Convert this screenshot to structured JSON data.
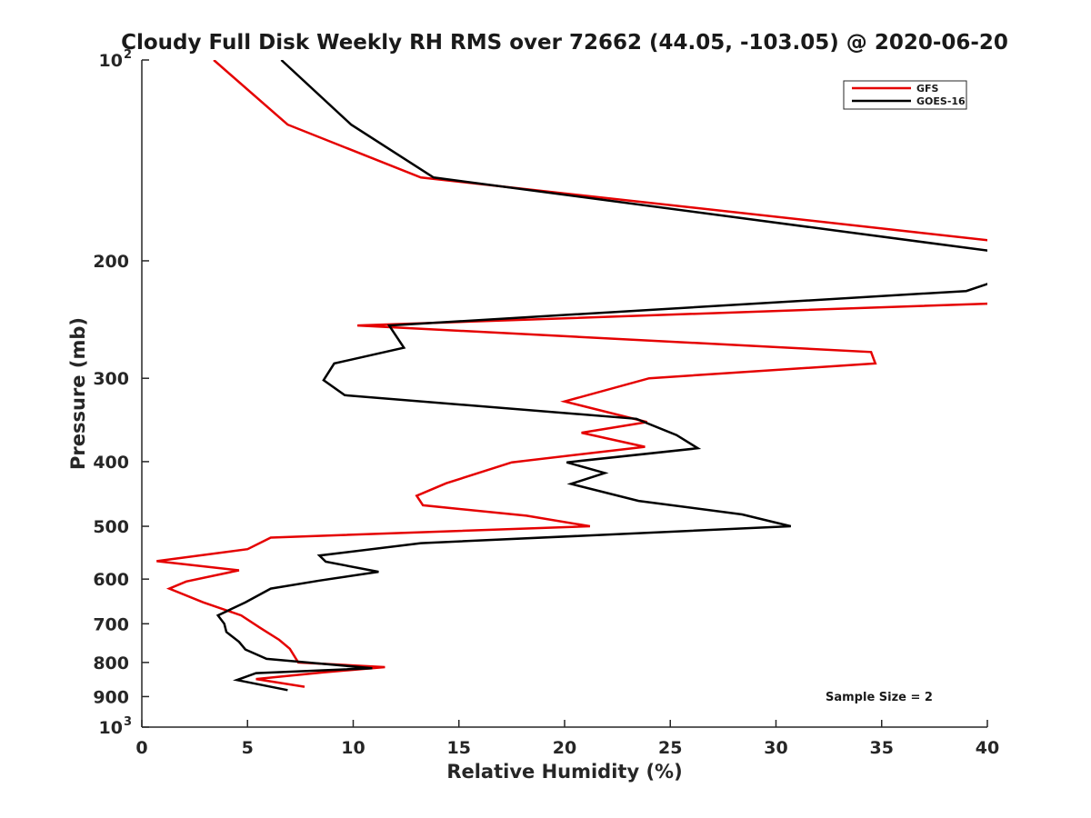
{
  "chart_data": {
    "type": "line",
    "title": "Cloudy Full Disk Weekly RH RMS over 72662 (44.05, -103.05) @ 2020-06-20",
    "xlabel": "Relative Humidity (%)",
    "ylabel": "Pressure (mb)",
    "xlim": [
      0,
      40
    ],
    "ylim": [
      100,
      1000
    ],
    "yscale": "log",
    "y_reversed": true,
    "grid": false,
    "legend_position": "top-right",
    "x_ticks": [
      0,
      5,
      10,
      15,
      20,
      25,
      30,
      35,
      40
    ],
    "y_ticks": [
      {
        "value": 100,
        "base": "10",
        "exp": "2"
      },
      {
        "value": 200,
        "label": "200"
      },
      {
        "value": 300,
        "label": "300"
      },
      {
        "value": 400,
        "label": "400"
      },
      {
        "value": 500,
        "label": "500"
      },
      {
        "value": 600,
        "label": "600"
      },
      {
        "value": 700,
        "label": "700"
      },
      {
        "value": 800,
        "label": "800"
      },
      {
        "value": 900,
        "label": "900"
      },
      {
        "value": 1000,
        "base": "10",
        "exp": "3"
      }
    ],
    "annotation": "Sample Size = 2",
    "series": [
      {
        "name": "GFS",
        "color": "#e50000",
        "points": [
          [
            3.4,
            100
          ],
          [
            6.9,
            125
          ],
          [
            13.2,
            150
          ],
          [
            40.5,
            187
          ],
          [
            41.5,
            231
          ],
          [
            10.2,
            250
          ],
          [
            34.5,
            274
          ],
          [
            34.7,
            285
          ],
          [
            24.0,
            300
          ],
          [
            20.0,
            325
          ],
          [
            23.9,
            349
          ],
          [
            20.8,
            362
          ],
          [
            23.8,
            380
          ],
          [
            17.5,
            401
          ],
          [
            14.4,
            431
          ],
          [
            13.0,
            450
          ],
          [
            13.3,
            465
          ],
          [
            18.2,
            482
          ],
          [
            21.2,
            500
          ],
          [
            6.1,
            520
          ],
          [
            5.0,
            541
          ],
          [
            0.7,
            564
          ],
          [
            4.6,
            582
          ],
          [
            2.1,
            605
          ],
          [
            1.3,
            620
          ],
          [
            2.9,
            650
          ],
          [
            4.7,
            680
          ],
          [
            5.6,
            710
          ],
          [
            6.5,
            740
          ],
          [
            7.0,
            763
          ],
          [
            7.4,
            800
          ],
          [
            11.5,
            813
          ],
          [
            8.6,
            828
          ],
          [
            5.4,
            847
          ],
          [
            7.7,
            870
          ]
        ]
      },
      {
        "name": "GOES-16",
        "color": "#000000",
        "points": [
          [
            6.6,
            100
          ],
          [
            9.9,
            125
          ],
          [
            13.8,
            150
          ],
          [
            40.5,
            194
          ],
          [
            40.5,
            214
          ],
          [
            39.0,
            222
          ],
          [
            11.7,
            250
          ],
          [
            12.4,
            270
          ],
          [
            9.1,
            285
          ],
          [
            8.6,
            302
          ],
          [
            9.6,
            318
          ],
          [
            23.4,
            345
          ],
          [
            25.3,
            365
          ],
          [
            26.3,
            382
          ],
          [
            20.1,
            401
          ],
          [
            21.9,
            416
          ],
          [
            20.3,
            432
          ],
          [
            23.5,
            458
          ],
          [
            28.4,
            480
          ],
          [
            30.7,
            500
          ],
          [
            13.2,
            530
          ],
          [
            8.4,
            553
          ],
          [
            8.7,
            565
          ],
          [
            11.2,
            585
          ],
          [
            8.4,
            603
          ],
          [
            6.1,
            620
          ],
          [
            4.9,
            650
          ],
          [
            3.6,
            680
          ],
          [
            3.9,
            700
          ],
          [
            4.0,
            720
          ],
          [
            4.6,
            745
          ],
          [
            4.9,
            765
          ],
          [
            5.9,
            790
          ],
          [
            10.9,
            816
          ],
          [
            5.4,
            830
          ],
          [
            4.5,
            850
          ],
          [
            6.9,
            880
          ]
        ]
      }
    ]
  }
}
